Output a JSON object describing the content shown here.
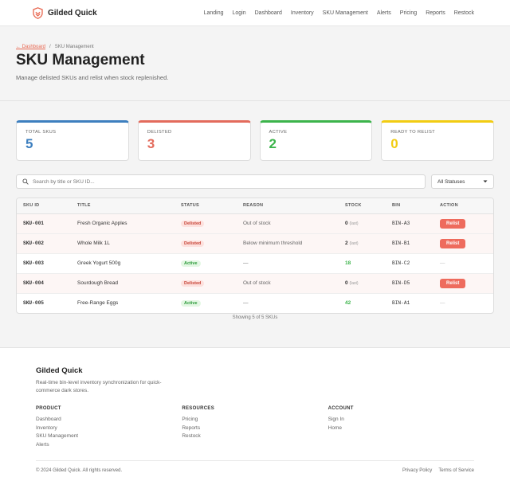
{
  "brand": {
    "name": "Gilded Quick",
    "accent": "#e8664f"
  },
  "nav": {
    "links": [
      "Landing",
      "Login",
      "Dashboard",
      "Inventory",
      "SKU Management",
      "Alerts",
      "Pricing",
      "Reports",
      "Restock"
    ]
  },
  "breadcrumb": {
    "back": "← Dashboard",
    "separator": "/",
    "current": "SKU Management"
  },
  "page": {
    "title": "SKU Management",
    "subtitle": "Manage delisted SKUs and relist when stock replenished."
  },
  "stats": [
    {
      "label": "TOTAL SKUS",
      "value": "5",
      "color": "#3d7fbf"
    },
    {
      "label": "DELISTED",
      "value": "3",
      "color": "#e36b5c"
    },
    {
      "label": "ACTIVE",
      "value": "2",
      "color": "#3cb44b"
    },
    {
      "label": "READY TO RELIST",
      "value": "0",
      "color": "#f2cc12"
    }
  ],
  "filters": {
    "search_placeholder": "Search by title or SKU ID...",
    "status_selected": "All Statuses"
  },
  "table": {
    "headers": [
      "SKU ID",
      "TITLE",
      "STATUS",
      "REASON",
      "STOCK",
      "BIN",
      "ACTION"
    ],
    "rows": [
      {
        "sku": "SKU-001",
        "title": "Fresh Organic Apples",
        "status": "Delisted",
        "reason": "Out of stock",
        "stock": "0",
        "stock_note": "(last)",
        "bin": "BIN-A3",
        "action": "Relist"
      },
      {
        "sku": "SKU-002",
        "title": "Whole Milk 1L",
        "status": "Delisted",
        "reason": "Below minimum threshold",
        "stock": "2",
        "stock_note": "(last)",
        "bin": "BIN-B1",
        "action": "Relist"
      },
      {
        "sku": "SKU-003",
        "title": "Greek Yogurt 500g",
        "status": "Active",
        "reason": "—",
        "stock": "18",
        "stock_note": "",
        "bin": "BIN-C2",
        "action": "—"
      },
      {
        "sku": "SKU-004",
        "title": "Sourdough Bread",
        "status": "Delisted",
        "reason": "Out of stock",
        "stock": "0",
        "stock_note": "(last)",
        "bin": "BIN-D5",
        "action": "Relist"
      },
      {
        "sku": "SKU-005",
        "title": "Free-Range Eggs",
        "status": "Active",
        "reason": "—",
        "stock": "42",
        "stock_note": "",
        "bin": "BIN-A1",
        "action": "—"
      }
    ],
    "summary": "Showing 5 of 5 SKUs"
  },
  "footer": {
    "brand": "Gilded Quick",
    "tagline": "Real-time bin-level inventory synchronization for quick-commerce dark stores.",
    "columns": [
      {
        "title": "PRODUCT",
        "links": [
          "Dashboard",
          "Inventory",
          "SKU Management",
          "Alerts"
        ]
      },
      {
        "title": "RESOURCES",
        "links": [
          "Pricing",
          "Reports",
          "Restock"
        ]
      },
      {
        "title": "ACCOUNT",
        "links": [
          "Sign In",
          "Home"
        ]
      }
    ],
    "copyright": "© 2024 Gilded Quick. All rights reserved.",
    "legal": [
      "Privacy Policy",
      "Terms of Service"
    ]
  }
}
